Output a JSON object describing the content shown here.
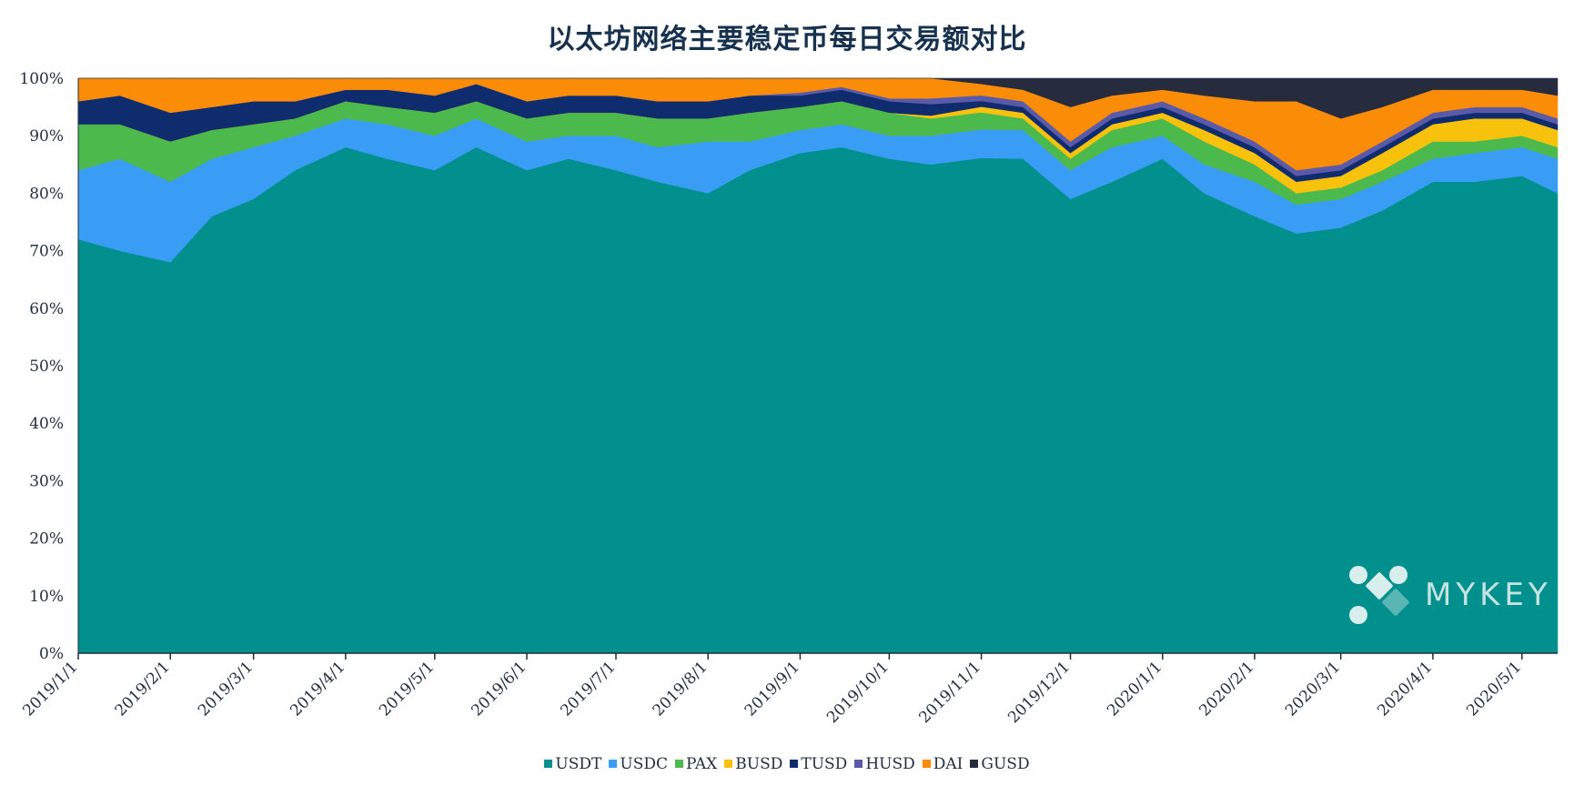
{
  "chart_data": {
    "type": "area",
    "stacked": true,
    "normalized_percent": true,
    "title": "以太坊网络主要稳定币每日交易额对比",
    "xlabel": "",
    "ylabel": "",
    "ylim": [
      0,
      100
    ],
    "y_ticks": [
      "0%",
      "10%",
      "20%",
      "30%",
      "40%",
      "50%",
      "60%",
      "70%",
      "80%",
      "90%",
      "100%"
    ],
    "x_range": [
      "2019-01-01",
      "2020-05-13"
    ],
    "x_ticks": [
      {
        "date": "2019-01-01",
        "label": "2019/1/1"
      },
      {
        "date": "2019-02-01",
        "label": "2019/2/1"
      },
      {
        "date": "2019-03-01",
        "label": "2019/3/1"
      },
      {
        "date": "2019-04-01",
        "label": "2019/4/1"
      },
      {
        "date": "2019-05-01",
        "label": "2019/5/1"
      },
      {
        "date": "2019-06-01",
        "label": "2019/6/1"
      },
      {
        "date": "2019-07-01",
        "label": "2019/7/1"
      },
      {
        "date": "2019-08-01",
        "label": "2019/8/1"
      },
      {
        "date": "2019-09-01",
        "label": "2019/9/1"
      },
      {
        "date": "2019-10-01",
        "label": "2019/10/1"
      },
      {
        "date": "2019-11-01",
        "label": "2019/11/1"
      },
      {
        "date": "2019-12-01",
        "label": "2019/12/1"
      },
      {
        "date": "2020-01-01",
        "label": "2020/1/1"
      },
      {
        "date": "2020-02-01",
        "label": "2020/2/1"
      },
      {
        "date": "2020-03-01",
        "label": "2020/3/1"
      },
      {
        "date": "2020-04-01",
        "label": "2020/4/1"
      },
      {
        "date": "2020-05-01",
        "label": "2020/5/1"
      }
    ],
    "legend_position": "bottom",
    "grid": false,
    "x": [
      "2019-01-01",
      "2019-01-15",
      "2019-02-01",
      "2019-02-15",
      "2019-03-01",
      "2019-03-15",
      "2019-04-01",
      "2019-04-15",
      "2019-05-01",
      "2019-05-15",
      "2019-06-01",
      "2019-06-15",
      "2019-07-01",
      "2019-07-15",
      "2019-08-01",
      "2019-08-15",
      "2019-09-01",
      "2019-09-15",
      "2019-10-01",
      "2019-10-15",
      "2019-11-01",
      "2019-11-15",
      "2019-12-01",
      "2019-12-15",
      "2020-01-01",
      "2020-01-15",
      "2020-02-01",
      "2020-02-15",
      "2020-03-01",
      "2020-03-15",
      "2020-04-01",
      "2020-04-15",
      "2020-05-01",
      "2020-05-13"
    ],
    "series": [
      {
        "name": "USDT",
        "color": "#02908f",
        "values": [
          72,
          70,
          68,
          76,
          79,
          84,
          88,
          86,
          84,
          88,
          84,
          86,
          84,
          82,
          80,
          84,
          87,
          88,
          86,
          85,
          87,
          86,
          79,
          82,
          86,
          80,
          76,
          73,
          74,
          77,
          82,
          82,
          83,
          80
        ]
      },
      {
        "name": "USDC",
        "color": "#3a9df5",
        "values": [
          12,
          16,
          14,
          10,
          9,
          6,
          5,
          6,
          6,
          5,
          5,
          4,
          6,
          6,
          9,
          5,
          4,
          4,
          4,
          5,
          5,
          5,
          5,
          6,
          4,
          5,
          6,
          5,
          5,
          5,
          4,
          5,
          5,
          6
        ]
      },
      {
        "name": "PAX",
        "color": "#4cb94c",
        "values": [
          8,
          6,
          7,
          5,
          4,
          3,
          3,
          3,
          4,
          3,
          4,
          4,
          4,
          5,
          4,
          5,
          4,
          4,
          4,
          3,
          3,
          2,
          2,
          3,
          3,
          4,
          3,
          2,
          2,
          2,
          3,
          2,
          2,
          2
        ]
      },
      {
        "name": "BUSD",
        "color": "#f7c10c",
        "values": [
          0,
          0,
          0,
          0,
          0,
          0,
          0,
          0,
          0,
          0,
          0,
          0,
          0,
          0,
          0,
          0,
          0,
          0,
          0,
          0.5,
          1,
          1,
          1,
          1,
          1,
          2,
          2,
          2,
          2,
          3,
          3,
          4,
          3,
          3
        ]
      },
      {
        "name": "TUSD",
        "color": "#0f2d6e",
        "values": [
          4,
          5,
          5,
          4,
          4,
          3,
          2,
          3,
          3,
          3,
          3,
          3,
          3,
          3,
          3,
          3,
          2,
          2,
          2,
          2,
          1,
          1,
          1,
          1,
          1,
          1,
          1,
          1,
          1,
          1,
          1,
          1,
          1,
          1
        ]
      },
      {
        "name": "HUSD",
        "color": "#5a5aa8",
        "values": [
          0,
          0,
          0,
          0,
          0,
          0,
          0,
          0,
          0,
          0,
          0,
          0,
          0,
          0,
          0,
          0,
          0.5,
          0.5,
          0.5,
          1,
          1,
          1,
          1,
          1,
          1,
          1,
          1,
          1,
          1,
          1,
          1,
          1,
          1,
          1
        ]
      },
      {
        "name": "DAI",
        "color": "#fb8c08",
        "values": [
          4,
          3,
          6,
          5,
          4,
          4,
          2,
          2,
          3,
          1,
          4,
          3,
          3,
          4,
          4,
          3,
          2.5,
          1.5,
          3.5,
          3.5,
          2,
          2,
          6,
          3,
          2,
          4,
          7,
          12,
          8,
          6,
          4,
          3,
          3,
          4
        ]
      },
      {
        "name": "GUSD",
        "color": "#262c3e",
        "values": [
          0,
          0,
          0,
          0,
          0,
          0,
          0,
          0,
          0,
          0,
          0,
          0,
          0,
          0,
          0,
          0,
          0,
          0,
          0,
          0,
          1,
          2,
          5,
          3,
          2,
          3,
          4,
          4,
          7,
          5,
          2,
          2,
          2,
          3
        ]
      }
    ]
  },
  "watermark": {
    "text": "MYKEY",
    "icon": "mykey-logo-icon"
  }
}
